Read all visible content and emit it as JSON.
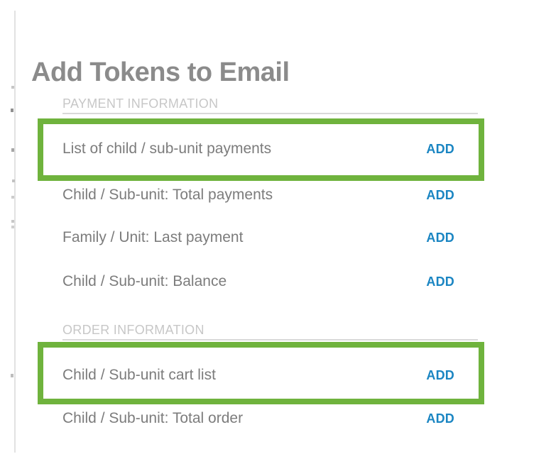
{
  "dialog": {
    "title": "Add Tokens to Email"
  },
  "colors": {
    "highlight_green": "#6fb33d",
    "add_link_blue": "#1a85c2",
    "title_gray": "#8b8b8b",
    "label_gray": "#7c7c7c",
    "section_heading_gray": "#c7c7c7"
  },
  "sections": [
    {
      "heading": "PAYMENT INFORMATION",
      "rows": [
        {
          "label": "List of child / sub-unit payments",
          "action_label": "ADD",
          "highlighted": true
        },
        {
          "label": "Child / Sub-unit: Total payments",
          "action_label": "ADD",
          "highlighted": false
        },
        {
          "label": "Family / Unit: Last payment",
          "action_label": "ADD",
          "highlighted": false
        },
        {
          "label": "Child / Sub-unit: Balance",
          "action_label": "ADD",
          "highlighted": false
        }
      ]
    },
    {
      "heading": "ORDER INFORMATION",
      "rows": [
        {
          "label": "Child / Sub-unit cart list",
          "action_label": "ADD",
          "highlighted": true
        },
        {
          "label": "Child / Sub-unit: Total order",
          "action_label": "ADD",
          "highlighted": false
        }
      ]
    }
  ]
}
